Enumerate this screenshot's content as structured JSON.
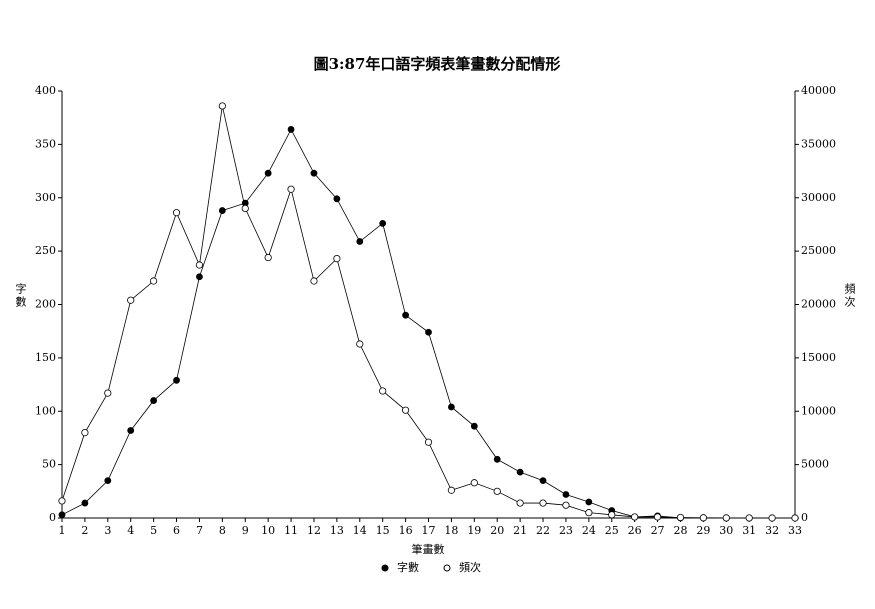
{
  "chart_data": {
    "type": "line",
    "title": "圖3:87年口語字頻表筆畫數分配情形",
    "x_label": "筆畫數",
    "y_label": "字數",
    "y2_label": "頻次",
    "x": [
      1,
      2,
      3,
      4,
      5,
      6,
      7,
      8,
      9,
      10,
      11,
      12,
      13,
      14,
      15,
      16,
      17,
      18,
      19,
      20,
      21,
      22,
      23,
      24,
      25,
      26,
      27,
      28,
      29,
      30,
      31,
      32,
      33
    ],
    "xlim": [
      1,
      33
    ],
    "xticks": [
      1,
      2,
      3,
      4,
      5,
      6,
      7,
      8,
      9,
      10,
      11,
      12,
      13,
      14,
      15,
      16,
      17,
      18,
      19,
      20,
      21,
      22,
      23,
      24,
      25,
      26,
      27,
      28,
      29,
      30,
      31,
      32,
      33
    ],
    "ylim": [
      0,
      400
    ],
    "yticks": [
      0,
      50,
      100,
      150,
      200,
      250,
      300,
      350,
      400
    ],
    "y2lim": [
      0,
      40000
    ],
    "y2ticks": [
      0,
      5000,
      10000,
      15000,
      20000,
      25000,
      30000,
      35000,
      40000
    ],
    "series": [
      {
        "name": "字數",
        "color": "#000000",
        "marker": "filled",
        "values": [
          3,
          14,
          35,
          82,
          110,
          129,
          226,
          288,
          295,
          323,
          364,
          323,
          299,
          259,
          276,
          190,
          174,
          104,
          86,
          55,
          43,
          35,
          22,
          15,
          7,
          1,
          2,
          0,
          0,
          0,
          0,
          0,
          0
        ]
      },
      {
        "name": "頻次",
        "color": "#000000",
        "marker": "open",
        "axis": "y2",
        "values": [
          1600,
          8000,
          11700,
          20400,
          22200,
          28600,
          23700,
          38600,
          29000,
          24400,
          30800,
          22200,
          24300,
          16300,
          11900,
          10100,
          7100,
          2600,
          3300,
          2500,
          1400,
          1400,
          1200,
          500,
          300,
          100,
          100,
          50,
          20,
          10,
          5,
          0,
          0
        ]
      }
    ]
  }
}
